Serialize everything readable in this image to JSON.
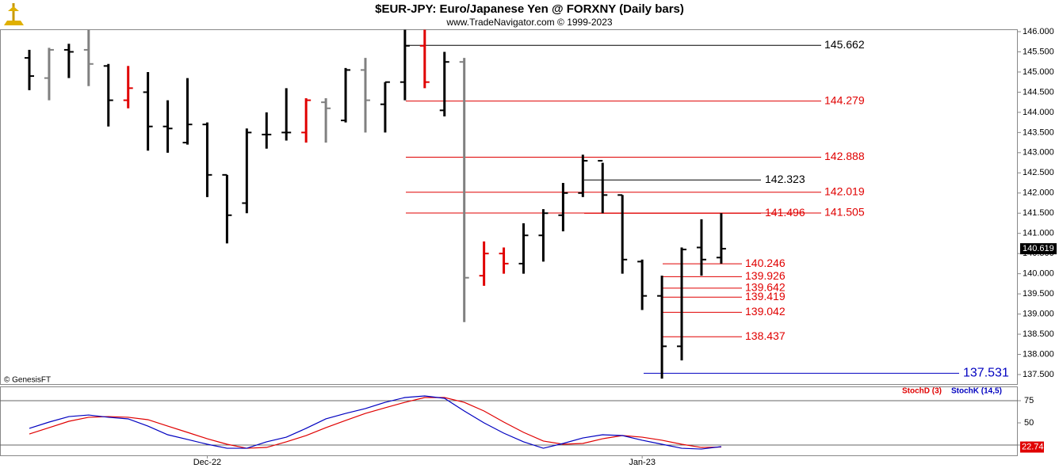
{
  "chart_data": [
    {
      "type": "ohlc",
      "title": "$EUR-JPY:  Euro/Japanese Yen @ FORXNY  (Daily bars)",
      "subtitle": "www.TradeNavigator.com © 1999-2023",
      "source": "© GenesisFT",
      "categories": [
        null,
        null,
        null,
        null,
        null,
        null,
        null,
        null,
        null,
        "Dec-22",
        null,
        null,
        null,
        null,
        null,
        null,
        null,
        null,
        null,
        null,
        null,
        null,
        null,
        null,
        null,
        null,
        null,
        null,
        null,
        null,
        null,
        "Jan-23",
        null,
        null,
        null,
        null
      ],
      "open": [
        145.35,
        144.85,
        145.55,
        145.55,
        145.15,
        144.3,
        144.5,
        143.65,
        143.25,
        143.7,
        142.45,
        141.75,
        143.45,
        143.5,
        143.5,
        144.25,
        143.8,
        145.05,
        144.2,
        144.75,
        145.65,
        144.05,
        145.25,
        139.95,
        140.5,
        140.25,
        140.95,
        141.45,
        142.0,
        142.8,
        141.95,
        140.3,
        139.45,
        138.2,
        140.65,
        140.4
      ],
      "high": [
        145.55,
        145.6,
        145.7,
        146.05,
        145.2,
        145.15,
        145.0,
        144.3,
        144.85,
        143.75,
        142.45,
        143.6,
        144.0,
        144.6,
        144.35,
        144.35,
        145.1,
        145.35,
        144.75,
        146.05,
        146.05,
        145.5,
        145.35,
        140.8,
        140.65,
        141.25,
        141.6,
        142.25,
        142.95,
        142.75,
        141.95,
        140.35,
        139.95,
        140.65,
        141.35,
        141.5
      ],
      "low": [
        144.55,
        144.3,
        144.85,
        144.65,
        143.65,
        144.1,
        143.05,
        143.0,
        143.2,
        141.9,
        140.75,
        141.5,
        143.1,
        143.3,
        143.25,
        143.25,
        143.75,
        143.5,
        143.5,
        144.3,
        144.6,
        143.9,
        138.8,
        139.7,
        140.0,
        140.0,
        140.3,
        141.05,
        141.9,
        141.5,
        140.0,
        139.1,
        137.4,
        137.85,
        139.95,
        140.25
      ],
      "close": [
        144.9,
        145.55,
        145.5,
        145.2,
        144.3,
        144.6,
        143.65,
        143.6,
        143.7,
        142.45,
        141.45,
        143.5,
        143.45,
        143.5,
        144.3,
        144.1,
        145.05,
        144.3,
        144.75,
        145.65,
        144.75,
        145.25,
        139.9,
        140.5,
        140.25,
        140.95,
        141.5,
        142.0,
        142.8,
        141.95,
        140.35,
        139.45,
        138.2,
        140.6,
        140.35,
        140.619
      ],
      "colors": [
        "#000",
        "#808080",
        "#000",
        "#808080",
        "#000",
        "#e00000",
        "#000",
        "#000",
        "#000",
        "#000",
        "#000",
        "#000",
        "#000",
        "#000",
        "#e00000",
        "#808080",
        "#000",
        "#808080",
        "#000",
        "#000",
        "#e00000",
        "#000",
        "#808080",
        "#e00000",
        "#e00000",
        "#000",
        "#000",
        "#000",
        "#000",
        "#000",
        "#000",
        "#000",
        "#000",
        "#000",
        "#000",
        "#000"
      ],
      "levels": [
        {
          "value": 145.662,
          "color": "#000000"
        },
        {
          "value": 144.279,
          "color": "#e00000"
        },
        {
          "value": 142.888,
          "color": "#e00000"
        },
        {
          "value": 142.323,
          "color": "#000000"
        },
        {
          "value": 142.019,
          "color": "#e00000"
        },
        {
          "value": 141.505,
          "color": "#e00000"
        },
        {
          "value": 141.496,
          "color": "#e00000"
        },
        {
          "value": 140.246,
          "color": "#e00000"
        },
        {
          "value": 139.926,
          "color": "#e00000"
        },
        {
          "value": 139.642,
          "color": "#e00000"
        },
        {
          "value": 139.419,
          "color": "#e00000"
        },
        {
          "value": 139.042,
          "color": "#e00000"
        },
        {
          "value": 138.437,
          "color": "#e00000"
        },
        {
          "value": 137.531,
          "color": "#0000c0"
        }
      ],
      "ylim": [
        137.264,
        146.059
      ],
      "yticks": [
        {
          "value": 137.5,
          "label": "137.500"
        },
        {
          "value": 138,
          "label": "138.000"
        },
        {
          "value": 138.5,
          "label": "138.500"
        },
        {
          "value": 139,
          "label": "139.000"
        },
        {
          "value": 139.5,
          "label": "139.500"
        },
        {
          "value": 140,
          "label": "140.000"
        },
        {
          "value": 140.5,
          "label": "140.500"
        },
        {
          "value": 141,
          "label": "141.000"
        },
        {
          "value": 141.5,
          "label": "141.500"
        },
        {
          "value": 142,
          "label": "142.000"
        },
        {
          "value": 142.5,
          "label": "142.500"
        },
        {
          "value": 143,
          "label": "143.000"
        },
        {
          "value": 143.5,
          "label": "143.500"
        },
        {
          "value": 144,
          "label": "144.000"
        },
        {
          "value": 144.5,
          "label": "144.500"
        },
        {
          "value": 145,
          "label": "145.000"
        },
        {
          "value": 145.5,
          "label": "145.500"
        },
        {
          "value": 146,
          "label": "146.000"
        }
      ]
    },
    {
      "type": "line",
      "series": [
        {
          "name": "StochD (3)",
          "color": "#e00000",
          "values": [
            37.5,
            44.6,
            51.8,
            56.3,
            57.1,
            56.3,
            53.6,
            46.4,
            39.3,
            32.1,
            25.9,
            21.4,
            22.3,
            28.6,
            35.7,
            44.6,
            52.7,
            60.7,
            67.0,
            73.2,
            78.6,
            78.6,
            73.2,
            63.4,
            50.9,
            39.3,
            29.5,
            25.9,
            26.8,
            32.1,
            35.7,
            33.9,
            30.4,
            25.9,
            22.3,
            22.74
          ]
        },
        {
          "name": "StochK (14,5)",
          "color": "#0000c0",
          "values": [
            43.8,
            50.9,
            57.1,
            58.9,
            56.3,
            54.5,
            46.4,
            36.6,
            31.3,
            25.9,
            21.4,
            21.4,
            28.6,
            33.9,
            43.8,
            54.5,
            60.7,
            66.1,
            73.2,
            78.6,
            80.4,
            77.7,
            63.4,
            50.0,
            38.4,
            28.6,
            21.4,
            26.8,
            33.0,
            36.6,
            35.7,
            30.4,
            25.9,
            21.4,
            20.5,
            23.2
          ]
        }
      ],
      "ylim": [
        13.4,
        89.3
      ],
      "yticks": [
        25,
        50,
        75
      ]
    }
  ]
}
